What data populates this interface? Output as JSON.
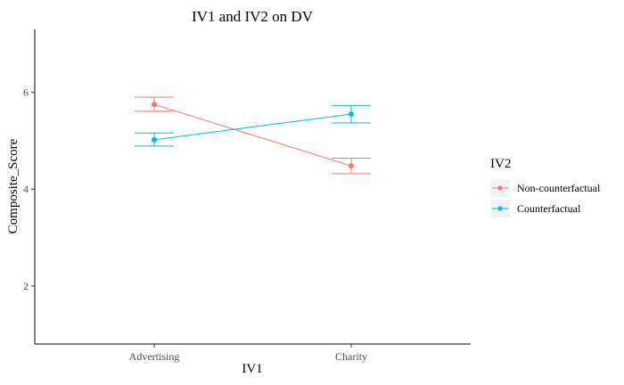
{
  "chart_data": {
    "type": "line",
    "title": "IV1 and IV2 on DV",
    "xlabel": "IV1",
    "ylabel": "Composite_Score",
    "categories": [
      "Advertising",
      "Charity"
    ],
    "ylim": [
      0.8,
      7.3
    ],
    "yticks": [
      2,
      4,
      6
    ],
    "grid": false,
    "legend": {
      "title": "IV2",
      "position": "right"
    },
    "series": [
      {
        "name": "Non-counterfactual",
        "color": "#F8766D",
        "values": [
          5.75,
          4.48
        ],
        "error_lower": [
          5.61,
          4.32
        ],
        "error_upper": [
          5.9,
          4.64
        ]
      },
      {
        "name": "Counterfactual",
        "color": "#00BFC4",
        "values": [
          5.02,
          5.55
        ],
        "error_lower": [
          4.89,
          5.37
        ],
        "error_upper": [
          5.16,
          5.73
        ]
      }
    ]
  }
}
